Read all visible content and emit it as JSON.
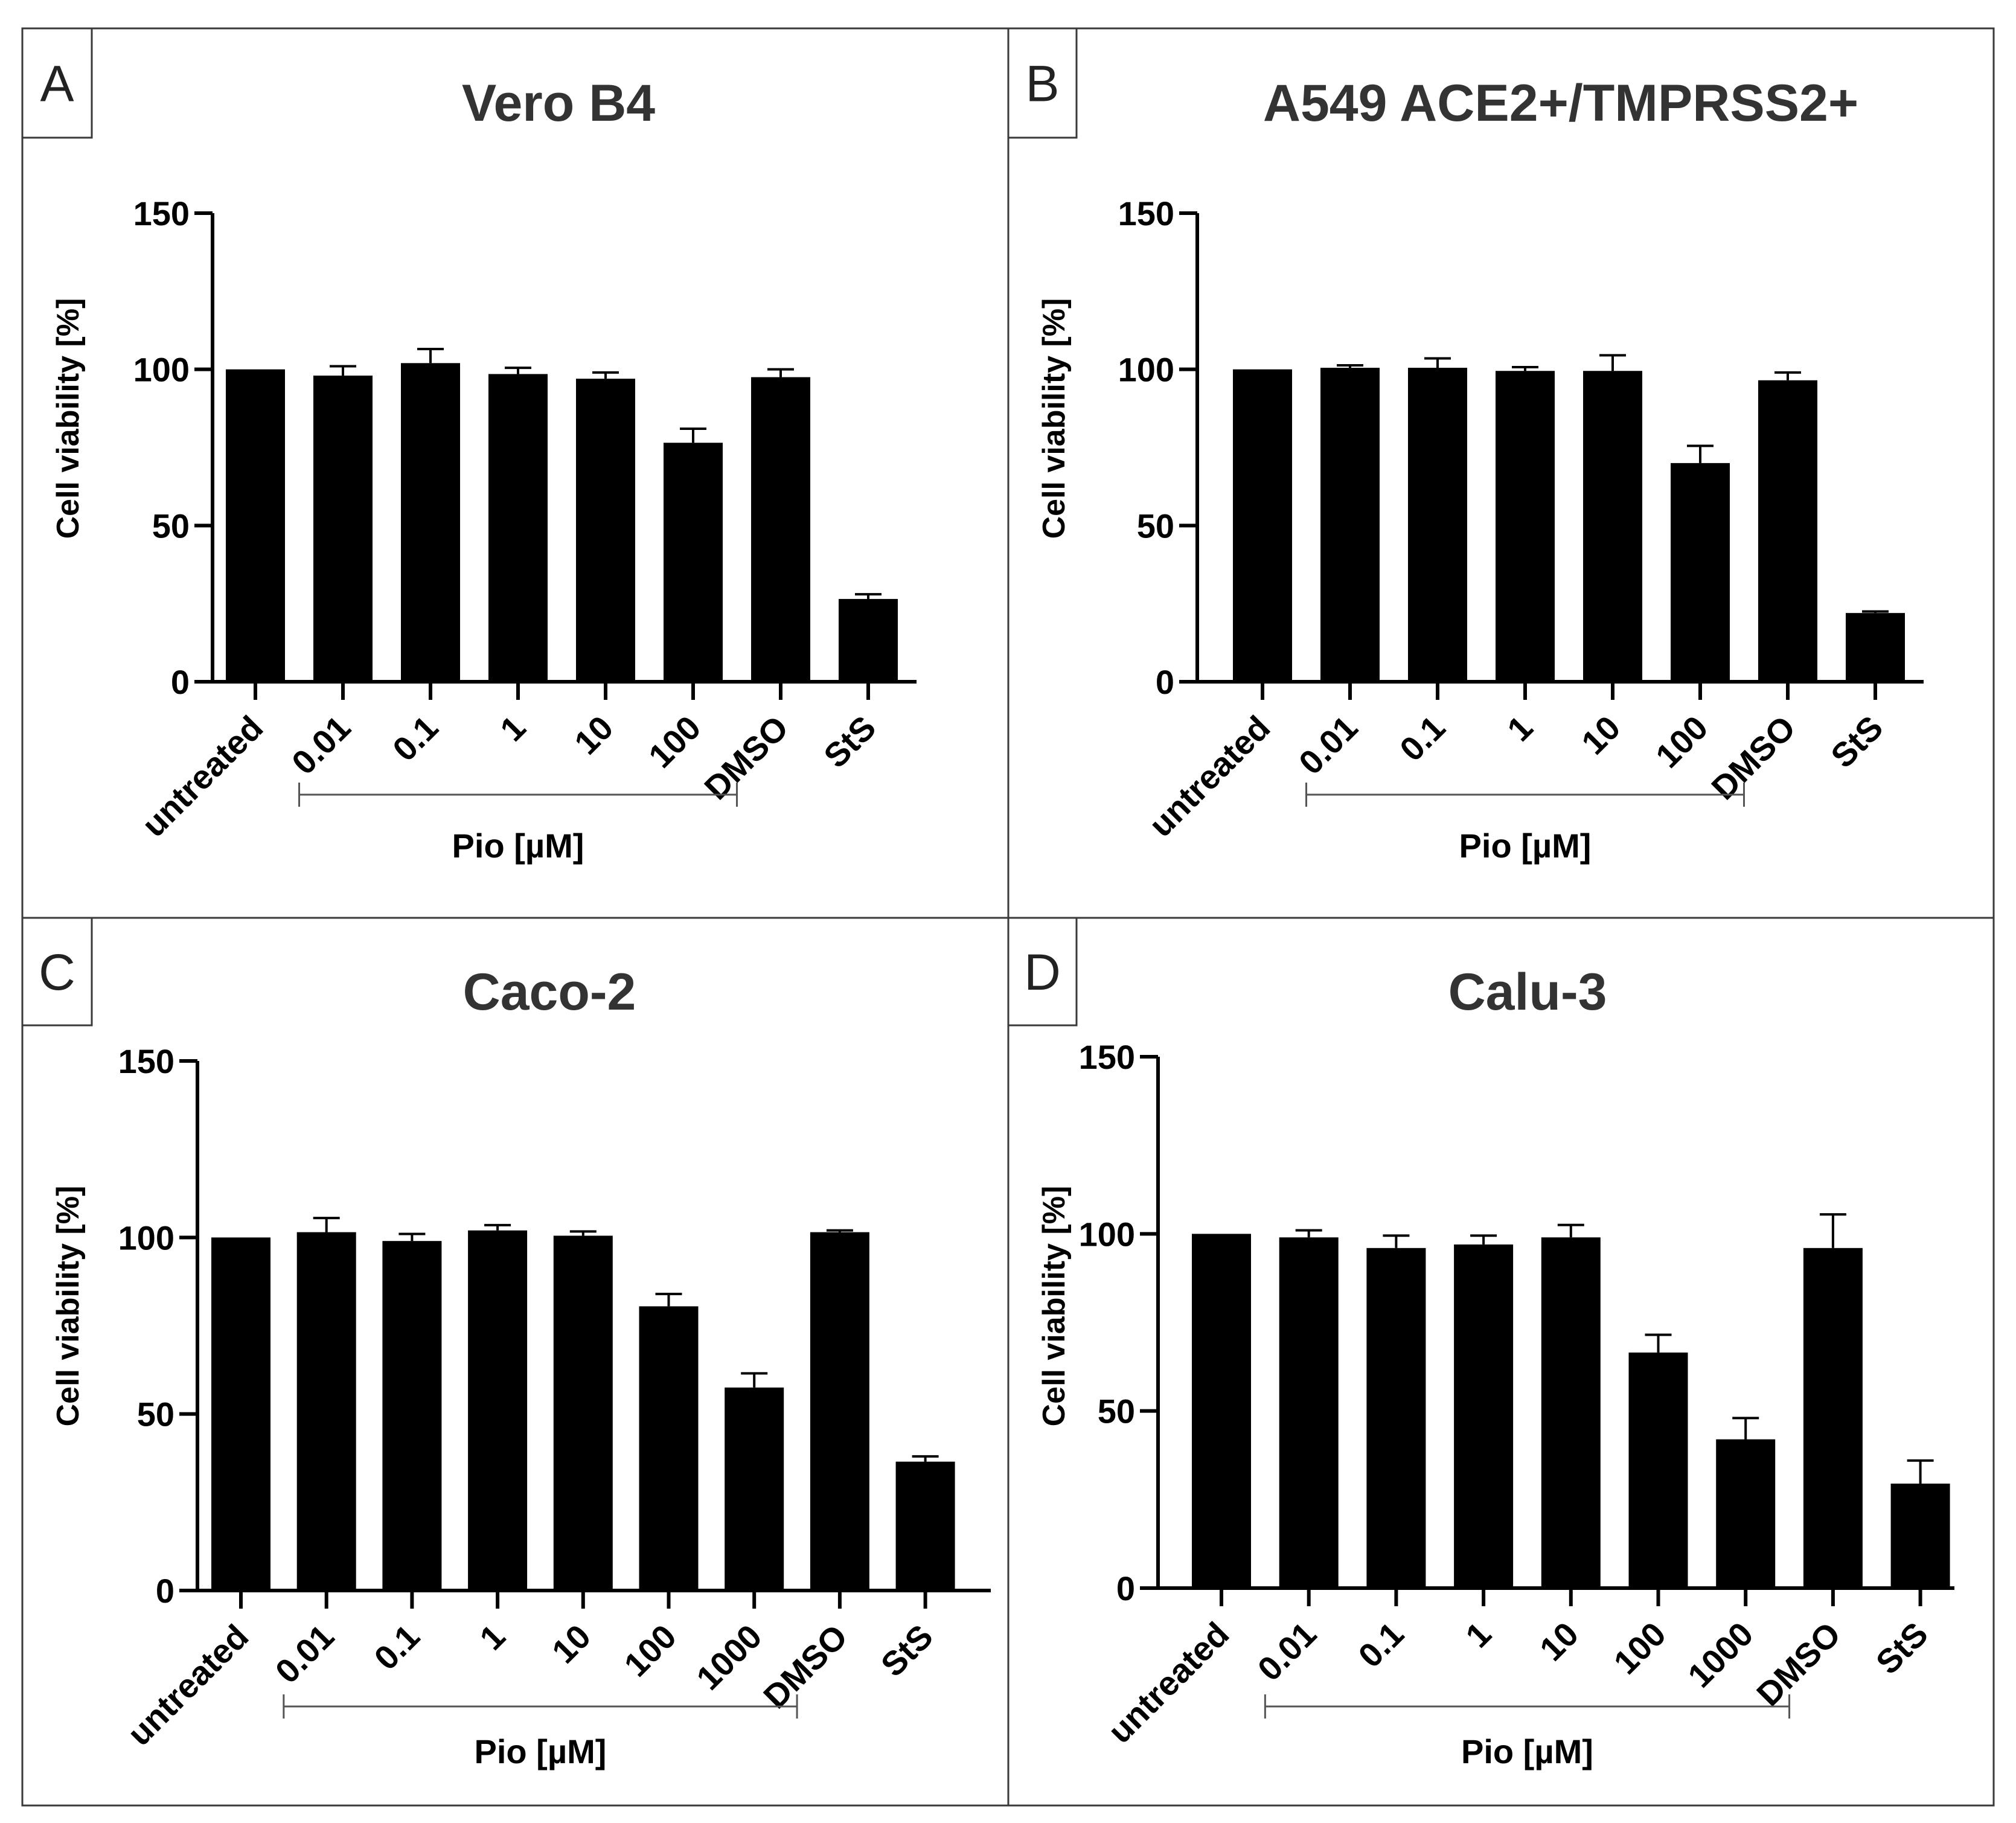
{
  "chart_data": [
    {
      "panel": "A",
      "type": "bar",
      "title": "Vero B4",
      "ylabel": "Cell viability [%]",
      "xlabel": "",
      "ylim": [
        0,
        150
      ],
      "yticks": [
        "0",
        "50",
        "100",
        "150"
      ],
      "categories": [
        "untreated",
        "0.01",
        "0.1",
        "1",
        "10",
        "100",
        "DMSO",
        "StS"
      ],
      "values": [
        100,
        98,
        102,
        98.5,
        97,
        76.5,
        97.5,
        26.5
      ],
      "errors": [
        0,
        3,
        4.5,
        2,
        2,
        4.5,
        2.5,
        1.5
      ],
      "group_label": "Pio [µM]",
      "group_range": [
        1,
        5
      ],
      "grid": false
    },
    {
      "panel": "B",
      "type": "bar",
      "title": "A549 ACE2+/TMPRSS2+",
      "ylabel": "Cell viability [%]",
      "xlabel": "",
      "ylim": [
        0,
        150
      ],
      "yticks": [
        "0",
        "50",
        "100",
        "150"
      ],
      "categories": [
        "untreated",
        "0.01",
        "0.1",
        "1",
        "10",
        "100",
        "DMSO",
        "StS"
      ],
      "values": [
        100,
        100.5,
        100.5,
        99.5,
        99.5,
        70,
        96.5,
        22
      ],
      "errors": [
        0,
        0.8,
        3,
        1.2,
        5,
        5.5,
        2.5,
        0.5
      ],
      "group_label": "Pio [µM]",
      "group_range": [
        1,
        5
      ],
      "grid": false
    },
    {
      "panel": "C",
      "type": "bar",
      "title": "Caco-2",
      "ylabel": "Cell viability [%]",
      "xlabel": "",
      "ylim": [
        0,
        150
      ],
      "yticks": [
        "0",
        "50",
        "100",
        "150"
      ],
      "categories": [
        "untreated",
        "0.01",
        "0.1",
        "1",
        "10",
        "100",
        "1000",
        "DMSO",
        "StS"
      ],
      "values": [
        100,
        101.5,
        99,
        102,
        100.5,
        80.5,
        57.5,
        101.5,
        36.5
      ],
      "errors": [
        0,
        4,
        2,
        1.5,
        1.2,
        3.5,
        4,
        0.5,
        1.5
      ],
      "group_label": "Pio [µM]",
      "group_range": [
        1,
        6
      ],
      "grid": false
    },
    {
      "panel": "D",
      "type": "bar",
      "title": "Calu-3",
      "ylabel": "Cell viability [%]",
      "xlabel": "",
      "ylim": [
        0,
        150
      ],
      "yticks": [
        "0",
        "50",
        "100",
        "150"
      ],
      "categories": [
        "untreated",
        "0.01",
        "0.1",
        "1",
        "10",
        "100",
        "1000",
        "DMSO",
        "StS"
      ],
      "values": [
        100,
        99,
        96,
        97,
        99,
        66.5,
        42,
        96,
        29.5
      ],
      "errors": [
        0,
        2,
        3.5,
        2.5,
        3.5,
        5,
        6,
        9.5,
        6.5
      ],
      "group_label": "Pio [µM]",
      "group_range": [
        1,
        6
      ],
      "grid": false
    }
  ]
}
